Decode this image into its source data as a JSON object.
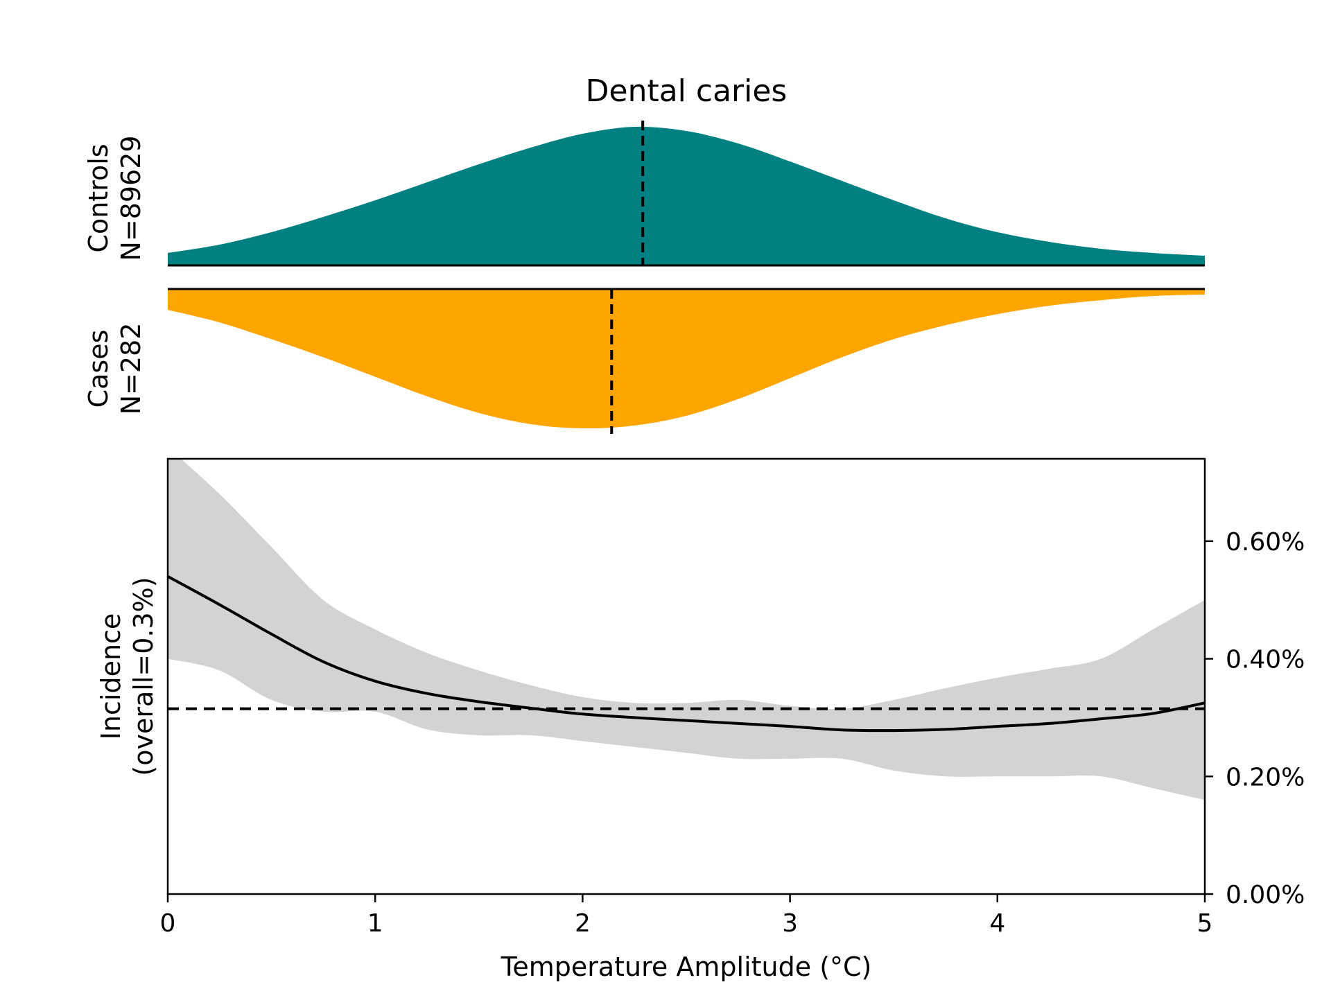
{
  "chart_data": {
    "type": "area",
    "title": "Dental caries",
    "xlabel": "Temperature Amplitude (°C)",
    "xlim": [
      0,
      5
    ],
    "x_ticks": [
      "0",
      "1",
      "2",
      "3",
      "4",
      "5"
    ],
    "colors": {
      "controls": "#008080",
      "cases": "#FFA500",
      "ci_band": "#D3D3D3",
      "curve": "#000000"
    },
    "controls": {
      "label_line1": "Controls",
      "label_line2": "N=89629",
      "median_x": 2.29,
      "density": {
        "x": [
          0,
          0.25,
          0.5,
          0.75,
          1.0,
          1.25,
          1.5,
          1.75,
          2.0,
          2.25,
          2.5,
          2.75,
          3.0,
          3.25,
          3.5,
          3.75,
          4.0,
          4.25,
          4.5,
          4.75,
          5.0
        ],
        "y": [
          0.09,
          0.15,
          0.24,
          0.35,
          0.47,
          0.6,
          0.73,
          0.85,
          0.95,
          1.0,
          0.97,
          0.88,
          0.75,
          0.61,
          0.47,
          0.34,
          0.24,
          0.17,
          0.12,
          0.09,
          0.07
        ]
      }
    },
    "cases": {
      "label_line1": "Cases",
      "label_line2": "N=282",
      "median_x": 2.14,
      "density": {
        "x": [
          0,
          0.25,
          0.5,
          0.75,
          1.0,
          1.25,
          1.5,
          1.75,
          2.0,
          2.25,
          2.5,
          2.75,
          3.0,
          3.25,
          3.5,
          3.75,
          4.0,
          4.25,
          4.5,
          4.75,
          5.0
        ],
        "y": [
          0.15,
          0.24,
          0.36,
          0.49,
          0.63,
          0.77,
          0.89,
          0.97,
          1.0,
          0.98,
          0.91,
          0.79,
          0.64,
          0.49,
          0.36,
          0.26,
          0.18,
          0.12,
          0.08,
          0.05,
          0.04
        ]
      }
    },
    "incidence": {
      "ylabel_line1": "Incidence",
      "ylabel_line2": "(overall=0.3%)",
      "ylim": [
        0,
        0.0074
      ],
      "y_ticks": [
        {
          "value": 0.0,
          "label": "0.00%"
        },
        {
          "value": 0.002,
          "label": "0.20%"
        },
        {
          "value": 0.004,
          "label": "0.40%"
        },
        {
          "value": 0.006,
          "label": "0.60%"
        }
      ],
      "overall": 0.00315,
      "x": [
        0,
        0.25,
        0.5,
        0.75,
        1.0,
        1.25,
        1.5,
        1.75,
        2.0,
        2.25,
        2.5,
        2.75,
        3.0,
        3.25,
        3.5,
        3.75,
        4.0,
        4.25,
        4.5,
        4.75,
        5.0
      ],
      "mean": [
        0.0054,
        0.00492,
        0.00442,
        0.00395,
        0.00362,
        0.00341,
        0.00327,
        0.00316,
        0.00306,
        0.003,
        0.00295,
        0.0029,
        0.00285,
        0.00279,
        0.00278,
        0.0028,
        0.00285,
        0.0029,
        0.00298,
        0.00307,
        0.00325
      ],
      "upper": [
        0.0076,
        0.0068,
        0.0059,
        0.005,
        0.0045,
        0.0041,
        0.0038,
        0.00355,
        0.00335,
        0.00325,
        0.00325,
        0.0033,
        0.0032,
        0.00315,
        0.0033,
        0.0035,
        0.00368,
        0.00383,
        0.004,
        0.0045,
        0.005
      ],
      "lower": [
        0.004,
        0.0038,
        0.0033,
        0.0031,
        0.0031,
        0.0028,
        0.0027,
        0.0027,
        0.0026,
        0.0025,
        0.0024,
        0.0023,
        0.0023,
        0.0023,
        0.0021,
        0.002,
        0.002,
        0.002,
        0.002,
        0.0018,
        0.0016
      ]
    }
  }
}
